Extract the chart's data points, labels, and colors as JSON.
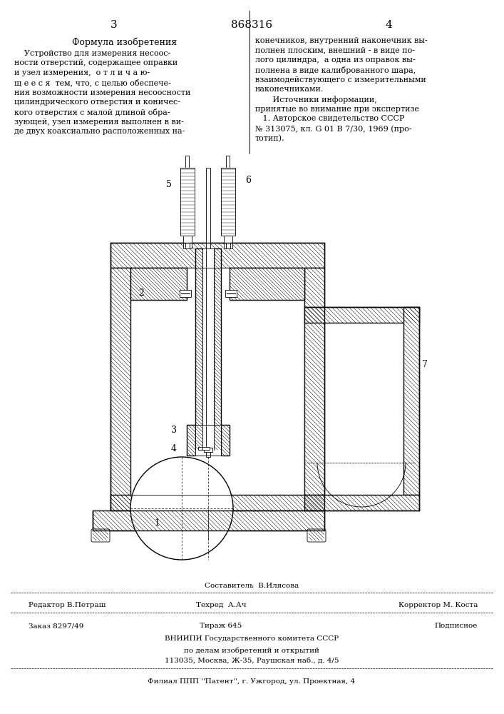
{
  "bg_color": "#ffffff",
  "page_number_left": "3",
  "page_number_right": "4",
  "patent_number": "868316",
  "left_col_title": "Формула изобретения",
  "left_col_text": "    Устройство для измерения несоос-\nности отверстий, содержащее оправки\nи узел измерения,  о т л и ч а ю-\nщ е е с я  тем, что, с целью обеспече-\nния возможности измерения несоосности\nцилиндрического отверстия и коничес-\nкого отверстия с малой длиной обра-\nзующей, узел измерения выполнен в ви-\nде двух коаксиально расположенных на-",
  "right_col_text": "конечников, внутренний наконечник вы-\nполнен плоским, внешний - в виде по-\nлого цилиндра,  а одна из оправок вы-\nполнена в виде калиброванного шара,\nвзаимодействующего с измерительными\nнаконечниками.\n       Источники информации,\nпринятые во внимание при экспертизе\n   1. Авторское свидетельство СССР\n№ 313075, кл. G 01 B 7/30, 1969 (про-\nтотип).",
  "composit": "Составитель  В.Илясова",
  "footer_line1_left": "Редактор В.Петраш",
  "footer_line1_center": "Техред  А.Ач",
  "footer_line1_right": "Корректор М. Коста",
  "footer_line2_left": "Заказ 8297/49",
  "footer_line2_center": "Тираж 645",
  "footer_line2_right": "Подписное",
  "footer_line3": "ВНИИПИ Государственного комитета СССР",
  "footer_line4": "по делам изобретений и открытий",
  "footer_line5": "113035, Москва, Ж-35, Раушская наб., д. 4/5",
  "footer_last": "Филиал ППП ''Патент'', г. Ужгород, ул. Проектная, 4",
  "label_1": "1",
  "label_2": "2",
  "label_3": "3",
  "label_4": "4",
  "label_5": "5",
  "label_6": "6",
  "label_7": "7"
}
